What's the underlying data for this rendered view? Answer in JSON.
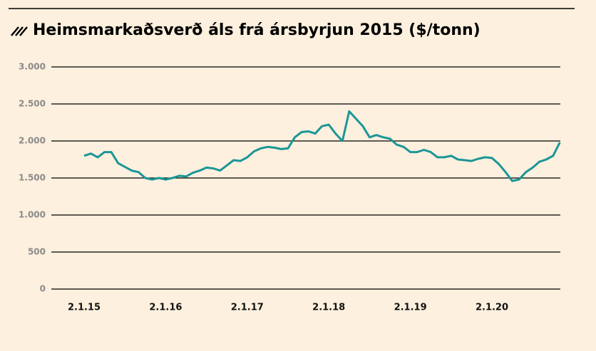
{
  "chart_data": {
    "type": "line",
    "title": "Heimsmarkaðsverð áls frá ársbyrjun 2015 ($/tonn)",
    "categories": [
      "2.1.15",
      null,
      null,
      null,
      null,
      null,
      null,
      null,
      null,
      null,
      null,
      null,
      "2.1.16",
      null,
      null,
      null,
      null,
      null,
      null,
      null,
      null,
      null,
      null,
      null,
      "2.1.17",
      null,
      null,
      null,
      null,
      null,
      null,
      null,
      null,
      null,
      null,
      null,
      "2.1.18",
      null,
      null,
      null,
      null,
      null,
      null,
      null,
      null,
      null,
      null,
      null,
      "2.1.19",
      null,
      null,
      null,
      null,
      null,
      null,
      null,
      null,
      null,
      null,
      null,
      "2.1.20",
      null,
      null,
      null,
      null,
      null,
      null,
      null,
      null,
      null,
      null
    ],
    "series": [
      {
        "name": null,
        "color": "#1b9696",
        "values": [
          1800,
          1830,
          1780,
          1850,
          1850,
          1700,
          1650,
          1600,
          1580,
          1500,
          1480,
          1500,
          1480,
          1500,
          1530,
          1520,
          1570,
          1600,
          1640,
          1630,
          1600,
          1670,
          1740,
          1730,
          1780,
          1860,
          1900,
          1920,
          1910,
          1890,
          1900,
          2050,
          2120,
          2130,
          2100,
          2200,
          2220,
          2100,
          2000,
          2400,
          2300,
          2200,
          2050,
          2080,
          2050,
          2030,
          1950,
          1920,
          1850,
          1850,
          1880,
          1850,
          1780,
          1780,
          1800,
          1750,
          1740,
          1730,
          1760,
          1780,
          1770,
          1690,
          1580,
          1460,
          1480,
          1580,
          1640,
          1720,
          1750,
          1800,
          1980
        ]
      }
    ],
    "ylim": [
      0,
      3000
    ],
    "yticks": [
      0,
      500,
      {
        "value": 1000,
        "label": "1.000"
      },
      {
        "value": 1500,
        "label": "1.500"
      },
      {
        "value": 2000,
        "label": "2.000"
      },
      {
        "value": 2500,
        "label": "2.500"
      },
      {
        "value": 3000,
        "label": "3.000"
      }
    ],
    "grid": true
  }
}
